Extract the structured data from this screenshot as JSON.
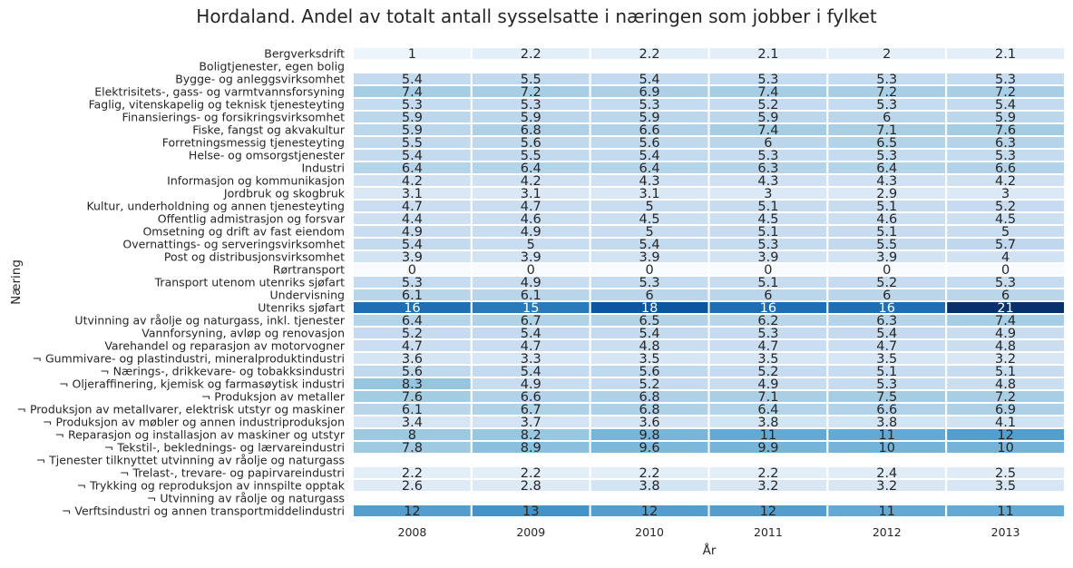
{
  "chart_data": {
    "type": "heatmap",
    "title": "Hordaland. Andel av totalt antall sysselsatte i næringen som jobber i fylket",
    "xlabel": "År",
    "ylabel": "Næring",
    "colormap": "Blues",
    "vmin": 0,
    "vmax": 21,
    "columns": [
      "2008",
      "2009",
      "2010",
      "2011",
      "2012",
      "2013"
    ],
    "rows": [
      "Bergverksdrift",
      "Boligtjenester, egen bolig",
      "Bygge- og anleggsvirksomhet",
      "Elektrisitets-, gass- og varmtvannsforsyning",
      "Faglig, vitenskapelig og teknisk tjenesteyting",
      "Finansierings- og forsikringsvirksomhet",
      "Fiske, fangst og akvakultur",
      "Forretningsmessig tjenesteyting",
      "Helse- og omsorgstjenester",
      "Industri",
      "Informasjon og kommunikasjon",
      "Jordbruk og skogbruk",
      "Kultur, underholdning og annen tjenesteyting",
      "Offentlig admistrasjon og forsvar",
      "Omsetning og drift av fast eiendom",
      "Overnattings- og serveringsvirksomhet",
      "Post og distribusjonsvirksomhet",
      "Rørtransport",
      "Transport utenom utenriks sjøfart",
      "Undervisning",
      "Utenriks sjøfart",
      "Utvinning av råolje og naturgass, inkl. tjenester",
      "Vannforsyning, avløp og renovasjon",
      "Varehandel og reparasjon av motorvogner",
      "¬ Gummivare- og plastindustri, mineralproduktindustri",
      "¬ Nærings-, drikkevare- og tobakksindustri",
      "¬ Oljeraffinering, kjemisk og farmasøytisk industri",
      "¬ Produksjon av metaller",
      "¬ Produksjon av metallvarer, elektrisk utstyr og maskiner",
      "¬ Produksjon av møbler og annen industriproduksjon",
      "¬ Reparasjon og installasjon av maskiner og utstyr",
      "¬ Tekstil-, beklednings- og lærvareindustri",
      "¬ Tjenester tilknyttet utvinning av råolje og naturgass",
      "¬ Trelast-, trevare- og papirvareindustri",
      "¬ Trykking og reproduksjon av innspilte opptak",
      "¬ Utvinning av råolje og naturgass",
      "¬ Verftsindustri og annen transportmiddelindustri"
    ],
    "values": [
      [
        1,
        2.2,
        2.2,
        2.1,
        2,
        2.1
      ],
      [
        null,
        null,
        null,
        null,
        null,
        null
      ],
      [
        5.4,
        5.5,
        5.4,
        5.3,
        5.3,
        5.3
      ],
      [
        7.4,
        7.2,
        6.9,
        7.4,
        7.2,
        7.2
      ],
      [
        5.3,
        5.3,
        5.3,
        5.2,
        5.3,
        5.4
      ],
      [
        5.9,
        5.9,
        5.9,
        5.9,
        6,
        5.9
      ],
      [
        5.9,
        6.8,
        6.6,
        7.4,
        7.1,
        7.6
      ],
      [
        5.5,
        5.6,
        5.6,
        6,
        6.5,
        6.3
      ],
      [
        5.4,
        5.5,
        5.4,
        5.3,
        5.3,
        5.3
      ],
      [
        6.4,
        6.4,
        6.4,
        6.3,
        6.4,
        6.6
      ],
      [
        4.2,
        4.2,
        4.3,
        4.3,
        4.3,
        4.2
      ],
      [
        3.1,
        3.1,
        3.1,
        3,
        2.9,
        3
      ],
      [
        4.7,
        4.7,
        5,
        5.1,
        5.1,
        5.2
      ],
      [
        4.4,
        4.6,
        4.5,
        4.5,
        4.6,
        4.5
      ],
      [
        4.9,
        4.9,
        5,
        5.1,
        5.1,
        5
      ],
      [
        5.4,
        5,
        5.4,
        5.3,
        5.5,
        5.7
      ],
      [
        3.9,
        3.9,
        3.9,
        3.9,
        3.9,
        4
      ],
      [
        0,
        0,
        0,
        0,
        0,
        0
      ],
      [
        5.3,
        4.9,
        5.3,
        5.1,
        5.2,
        5.3
      ],
      [
        6.1,
        6.1,
        6,
        6,
        6,
        6
      ],
      [
        16,
        15,
        18,
        16,
        16,
        21
      ],
      [
        6.4,
        6.7,
        6.5,
        6.2,
        6.3,
        7.4
      ],
      [
        5.2,
        5.4,
        5.4,
        5.3,
        5.4,
        4.9
      ],
      [
        4.7,
        4.7,
        4.8,
        4.7,
        4.7,
        4.8
      ],
      [
        3.6,
        3.3,
        3.5,
        3.5,
        3.5,
        3.2
      ],
      [
        5.6,
        5.4,
        5.6,
        5.2,
        5.1,
        5.1
      ],
      [
        8.3,
        4.9,
        5.2,
        4.9,
        5.3,
        4.8
      ],
      [
        7.6,
        6.6,
        6.8,
        7.1,
        7.5,
        7.2
      ],
      [
        6.1,
        6.7,
        6.8,
        6.4,
        6.6,
        6.9
      ],
      [
        3.4,
        3.7,
        3.6,
        3.8,
        3.8,
        4.1
      ],
      [
        8,
        8.2,
        9.8,
        11,
        11,
        12
      ],
      [
        7.8,
        8.9,
        9.6,
        9.9,
        10,
        10
      ],
      [
        null,
        null,
        null,
        null,
        null,
        null
      ],
      [
        2.2,
        2.2,
        2.2,
        2.2,
        2.4,
        2.5
      ],
      [
        2.6,
        2.8,
        3.8,
        3.2,
        3.2,
        3.5
      ],
      [
        null,
        null,
        null,
        null,
        null,
        null
      ],
      [
        12,
        13,
        12,
        12,
        11,
        11
      ]
    ]
  }
}
